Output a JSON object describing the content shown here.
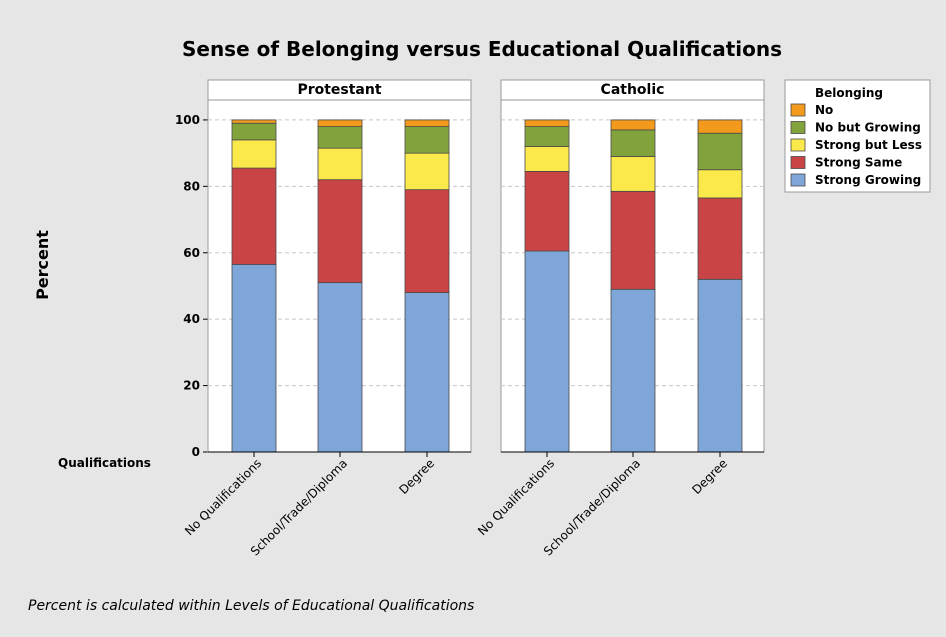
{
  "chart_data": {
    "type": "bar",
    "stacked": true,
    "title": "Sense of Belonging versus Educational Qualifications",
    "ylabel": "Percent",
    "xlabel": "Qualifications",
    "ylim": [
      0,
      106
    ],
    "yticks": [
      0,
      20,
      40,
      60,
      80,
      100
    ],
    "grid": true,
    "legend_placement": "top-right",
    "legend_title": "Belonging",
    "categories": [
      "No Qualifications",
      "School/Trade/Diploma",
      "Degree"
    ],
    "series": [
      {
        "name": "Strong Growing",
        "color": "#7ea6d8"
      },
      {
        "name": "Strong Same",
        "color": "#c94444"
      },
      {
        "name": "Strong but Less",
        "color": "#fbe84a"
      },
      {
        "name": "No but Growing",
        "color": "#82a33c"
      },
      {
        "name": "No",
        "color": "#f39a1c"
      }
    ],
    "legend_order": [
      "No",
      "No but Growing",
      "Strong but Less",
      "Strong Same",
      "Strong Growing"
    ],
    "panels": [
      {
        "name": "Protestant",
        "values": {
          "Strong Growing": [
            56.5,
            51.0,
            48.0
          ],
          "Strong Same": [
            29.0,
            31.0,
            31.0
          ],
          "Strong but Less": [
            8.5,
            9.5,
            11.0
          ],
          "No but Growing": [
            5.0,
            6.5,
            8.0
          ],
          "No": [
            1.0,
            2.0,
            2.0
          ]
        }
      },
      {
        "name": "Catholic",
        "values": {
          "Strong Growing": [
            60.5,
            49.0,
            52.0
          ],
          "Strong Same": [
            24.0,
            29.5,
            24.5
          ],
          "Strong but Less": [
            7.5,
            10.5,
            8.5
          ],
          "No but Growing": [
            6.0,
            8.0,
            11.0
          ],
          "No": [
            2.0,
            3.0,
            4.0
          ]
        }
      }
    ],
    "footnote": "Percent is calculated within Levels of Educational Qualifications"
  }
}
